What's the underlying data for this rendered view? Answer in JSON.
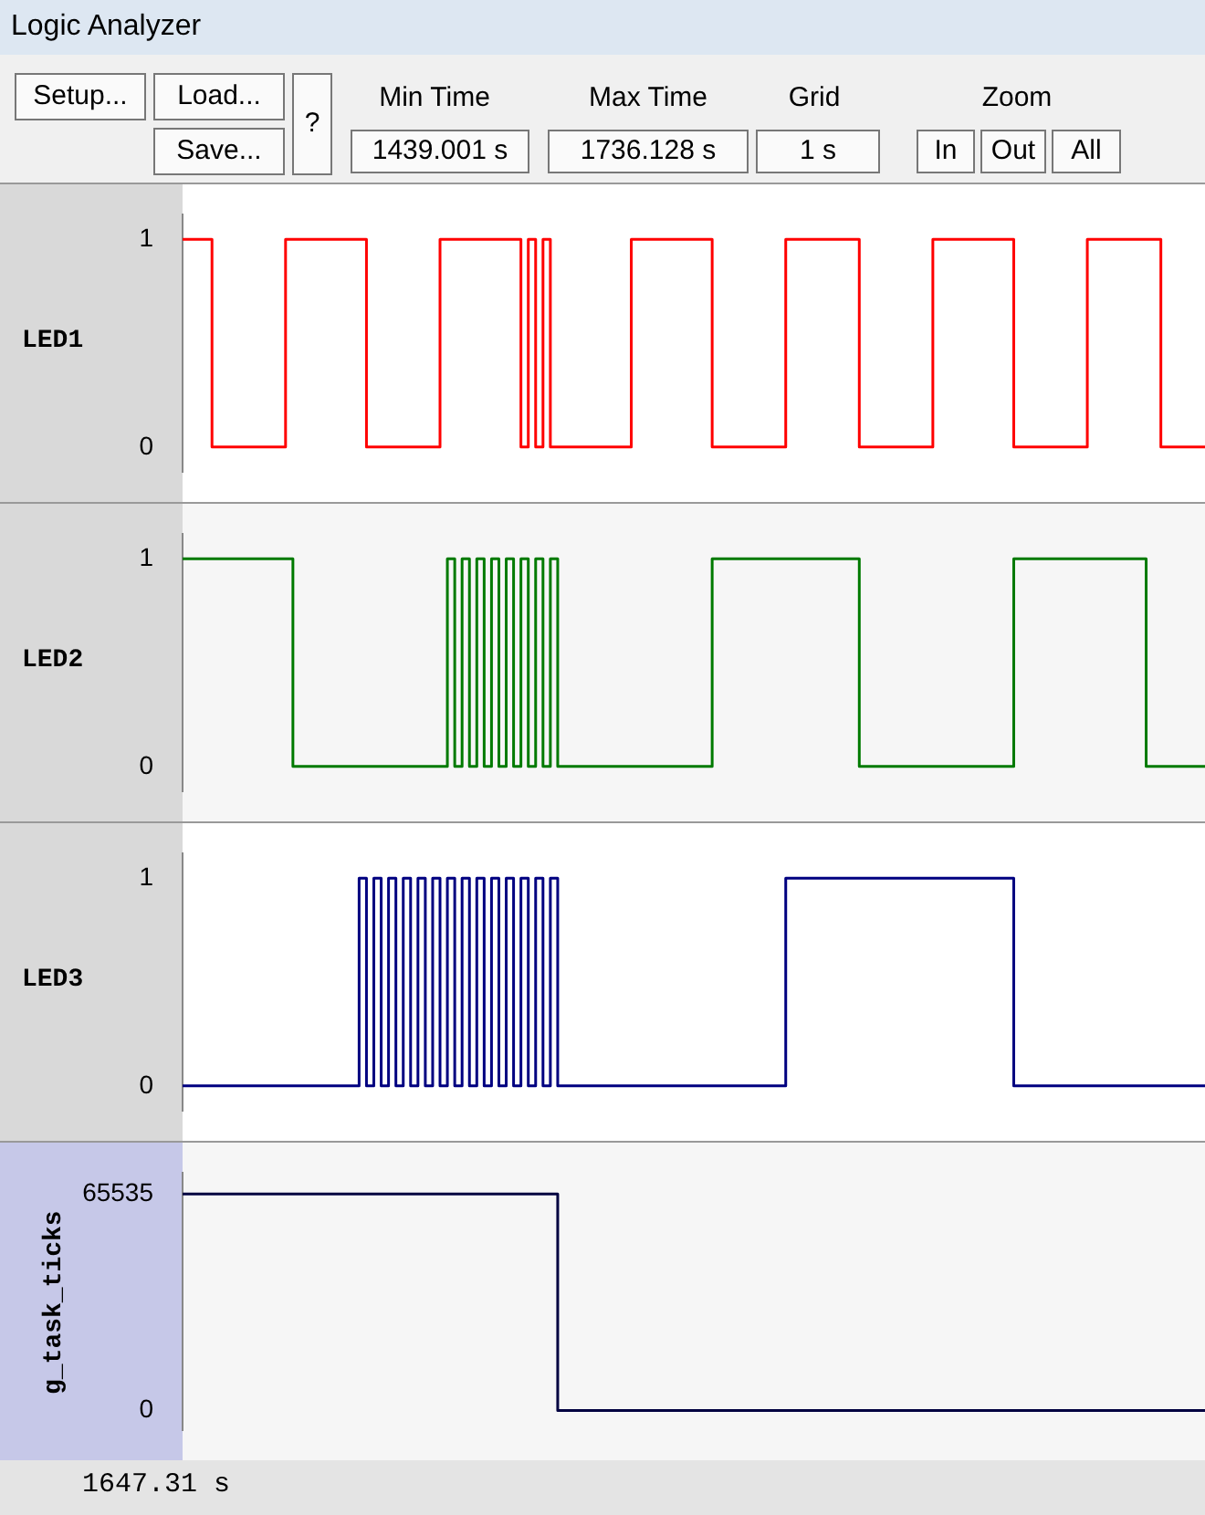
{
  "chart_data": [
    {
      "type": "step",
      "title": "Logic Analyzer",
      "ylabel": "LED1",
      "marker": "none",
      "ylim": [
        -0.12,
        1.12
      ],
      "yticks": [
        0,
        1
      ],
      "annotations": [
        "Setup...",
        "Load...",
        "Save...",
        "?",
        "Min Time",
        "1439.001 s",
        "Max Time",
        "1736.128 s",
        "Grid",
        "1 s",
        "Zoom",
        "In",
        "Out",
        "All"
      ],
      "categories": [
        null,
        null,
        null,
        null,
        null,
        null,
        null,
        null,
        null,
        null,
        null,
        null,
        null,
        null,
        null,
        null,
        null,
        null,
        null,
        null,
        null,
        null,
        null,
        null,
        null,
        null,
        null,
        null,
        null,
        null,
        null,
        null,
        null,
        null,
        null,
        null,
        null,
        null,
        null,
        null,
        null,
        null,
        null,
        null,
        null,
        null,
        null,
        null,
        null,
        null,
        null,
        null,
        null,
        null,
        null,
        null,
        null,
        null,
        null,
        null,
        null,
        null,
        null,
        null,
        null,
        null,
        null,
        null,
        null,
        null,
        null,
        null,
        null,
        null,
        null,
        null,
        null,
        null,
        null,
        null,
        null,
        null,
        null,
        null,
        null,
        null,
        null,
        null,
        null,
        null,
        null,
        null,
        null,
        null,
        null,
        null,
        null,
        null,
        null,
        null,
        null,
        null,
        null,
        null,
        null,
        null,
        null,
        null,
        null,
        null,
        null,
        null,
        null,
        null,
        null,
        null,
        null,
        null,
        null,
        null,
        null,
        null,
        null,
        null,
        null,
        null,
        null,
        null,
        null,
        null,
        null,
        null,
        null,
        null,
        null,
        null,
        null,
        null,
        null,
        null
      ],
      "series": [
        {
          "color": "#ff0000",
          "values": [
            1,
            1,
            1,
            1,
            1,
            0,
            0,
            0,
            0,
            0,
            0,
            0,
            0,
            0,
            0,
            1,
            1,
            1,
            1,
            1,
            1,
            1,
            1,
            1,
            1,
            1,
            0,
            0,
            0,
            0,
            0,
            0,
            0,
            0,
            0,
            0,
            1,
            1,
            1,
            1,
            1,
            1,
            1,
            1,
            1,
            1,
            1,
            0,
            1,
            0,
            1,
            0,
            0,
            0,
            0,
            0,
            0,
            0,
            0,
            0,
            0,
            0,
            1,
            1,
            1,
            1,
            1,
            1,
            1,
            1,
            1,
            1,
            1,
            0,
            0,
            0,
            0,
            0,
            0,
            0,
            0,
            0,
            0,
            1,
            1,
            1,
            1,
            1,
            1,
            1,
            1,
            1,
            1,
            0,
            0,
            0,
            0,
            0,
            0,
            0,
            0,
            0,
            0,
            1,
            1,
            1,
            1,
            1,
            1,
            1,
            1,
            1,
            1,
            1,
            0,
            0,
            0,
            0,
            0,
            0,
            0,
            0,
            0,
            0,
            1,
            1,
            1,
            1,
            1,
            1,
            1,
            1,
            1,
            1,
            0,
            0,
            0,
            0,
            0,
            0
          ]
        }
      ]
    },
    {
      "type": "step",
      "ylabel": "LED2",
      "marker": "none",
      "ylim": [
        -0.12,
        1.12
      ],
      "yticks": [
        0,
        1
      ],
      "categories": [
        null,
        null,
        null,
        null,
        null,
        null,
        null,
        null,
        null,
        null,
        null,
        null,
        null,
        null,
        null,
        null,
        null,
        null,
        null,
        null,
        null,
        null,
        null,
        null,
        null,
        null,
        null,
        null,
        null,
        null,
        null,
        null,
        null,
        null,
        null,
        null,
        null,
        null,
        null,
        null,
        null,
        null,
        null,
        null,
        null,
        null,
        null,
        null,
        null,
        null,
        null,
        null,
        null,
        null,
        null,
        null,
        null,
        null,
        null,
        null,
        null,
        null,
        null,
        null,
        null,
        null,
        null,
        null,
        null,
        null,
        null,
        null,
        null,
        null,
        null,
        null,
        null,
        null,
        null,
        null,
        null,
        null,
        null,
        null,
        null,
        null,
        null,
        null,
        null,
        null,
        null,
        null,
        null,
        null,
        null,
        null,
        null,
        null,
        null,
        null,
        null,
        null,
        null,
        null,
        null,
        null,
        null,
        null,
        null,
        null,
        null,
        null,
        null,
        null,
        null,
        null,
        null,
        null,
        null,
        null,
        null,
        null,
        null,
        null,
        null,
        null,
        null,
        null,
        null,
        null,
        null,
        null,
        null,
        null,
        null,
        null,
        null,
        null,
        null,
        null
      ],
      "series": [
        {
          "color": "#007a00",
          "values": [
            1,
            1,
            1,
            1,
            1,
            1,
            1,
            1,
            1,
            1,
            1,
            1,
            1,
            1,
            1,
            1,
            0,
            0,
            0,
            0,
            0,
            0,
            0,
            0,
            0,
            0,
            0,
            0,
            0,
            0,
            0,
            0,
            0,
            0,
            0,
            0,
            0,
            1,
            0,
            1,
            0,
            1,
            0,
            1,
            0,
            1,
            0,
            1,
            0,
            1,
            0,
            1,
            0,
            0,
            0,
            0,
            0,
            0,
            0,
            0,
            0,
            0,
            0,
            0,
            0,
            0,
            0,
            0,
            0,
            0,
            0,
            0,
            0,
            1,
            1,
            1,
            1,
            1,
            1,
            1,
            1,
            1,
            1,
            1,
            1,
            1,
            1,
            1,
            1,
            1,
            1,
            1,
            1,
            0,
            0,
            0,
            0,
            0,
            0,
            0,
            0,
            0,
            0,
            0,
            0,
            0,
            0,
            0,
            0,
            0,
            0,
            0,
            0,
            0,
            1,
            1,
            1,
            1,
            1,
            1,
            1,
            1,
            1,
            1,
            1,
            1,
            1,
            1,
            1,
            1,
            1,
            1,
            0,
            0,
            0,
            0,
            0,
            0,
            0,
            0
          ]
        }
      ]
    },
    {
      "type": "step",
      "ylabel": "LED3",
      "marker": "none",
      "ylim": [
        -0.12,
        1.12
      ],
      "yticks": [
        0,
        1
      ],
      "categories": [
        null,
        null,
        null,
        null,
        null,
        null,
        null,
        null,
        null,
        null,
        null,
        null,
        null,
        null,
        null,
        null,
        null,
        null,
        null,
        null,
        null,
        null,
        null,
        null,
        null,
        null,
        null,
        null,
        null,
        null,
        null,
        null,
        null,
        null,
        null,
        null,
        null,
        null,
        null,
        null,
        null,
        null,
        null,
        null,
        null,
        null,
        null,
        null,
        null,
        null,
        null,
        null,
        null,
        null,
        null,
        null,
        null,
        null,
        null,
        null,
        null,
        null,
        null,
        null,
        null,
        null,
        null,
        null,
        null,
        null,
        null,
        null,
        null,
        null,
        null,
        null,
        null,
        null,
        null,
        null,
        null,
        null,
        null,
        null,
        null,
        null,
        null,
        null,
        null,
        null,
        null,
        null,
        null,
        null,
        null,
        null,
        null,
        null,
        null,
        null,
        null,
        null,
        null,
        null,
        null,
        null,
        null,
        null,
        null,
        null,
        null,
        null,
        null,
        null,
        null,
        null,
        null,
        null,
        null,
        null,
        null,
        null,
        null,
        null,
        null,
        null,
        null,
        null,
        null,
        null,
        null,
        null,
        null,
        null,
        null,
        null,
        null,
        null,
        null,
        null
      ],
      "series": [
        {
          "color": "#000080",
          "values": [
            0,
            0,
            0,
            0,
            0,
            0,
            0,
            0,
            0,
            0,
            0,
            0,
            0,
            0,
            0,
            0,
            0,
            0,
            0,
            0,
            0,
            0,
            0,
            0,
            0,
            1,
            0,
            1,
            0,
            1,
            0,
            1,
            0,
            1,
            0,
            1,
            0,
            1,
            0,
            1,
            0,
            1,
            0,
            1,
            0,
            1,
            0,
            1,
            0,
            1,
            0,
            1,
            0,
            0,
            0,
            0,
            0,
            0,
            0,
            0,
            0,
            0,
            0,
            0,
            0,
            0,
            0,
            0,
            0,
            0,
            0,
            0,
            0,
            0,
            0,
            0,
            0,
            0,
            0,
            0,
            0,
            0,
            0,
            1,
            1,
            1,
            1,
            1,
            1,
            1,
            1,
            1,
            1,
            1,
            1,
            1,
            1,
            1,
            1,
            1,
            1,
            1,
            1,
            1,
            1,
            1,
            1,
            1,
            1,
            1,
            1,
            1,
            1,
            1,
            0,
            0,
            0,
            0,
            0,
            0,
            0,
            0,
            0,
            0,
            0,
            0,
            0,
            0,
            0,
            0,
            0,
            0,
            0,
            0,
            0,
            0,
            0,
            0,
            0,
            0
          ]
        }
      ]
    },
    {
      "type": "step",
      "ylabel": "g_task_ticks",
      "marker": "none",
      "ylim": [
        -6000,
        72000
      ],
      "yticks": [
        0,
        65535
      ],
      "annotations": [
        "1647.31 s"
      ],
      "categories": [
        null,
        null,
        null,
        null,
        null,
        null,
        null,
        null,
        null,
        null,
        null,
        null,
        null,
        null,
        null,
        null,
        null,
        null,
        null,
        null,
        null,
        null,
        null,
        null,
        null,
        null,
        null,
        null,
        null,
        null,
        null,
        null,
        null,
        null,
        null,
        null,
        null,
        null,
        null,
        null,
        null,
        null,
        null,
        null,
        null,
        null,
        null,
        null,
        null,
        null,
        null,
        null,
        null,
        null,
        null,
        null,
        null,
        null,
        null,
        null,
        null,
        null,
        null,
        null,
        null,
        null,
        null,
        null,
        null,
        null,
        null,
        null,
        null,
        null,
        null,
        null,
        null,
        null,
        null,
        null,
        null,
        null,
        null,
        null,
        null,
        null,
        null,
        null,
        null,
        null,
        null,
        null,
        null,
        null,
        null,
        null,
        null,
        null,
        null,
        null,
        null,
        null,
        null,
        null,
        null,
        null,
        null,
        null,
        null,
        null,
        null,
        null,
        null,
        null,
        null,
        null,
        null,
        null,
        null,
        null,
        null,
        null,
        null,
        null,
        null,
        null,
        null,
        null,
        null,
        null,
        null,
        null,
        null,
        null,
        null,
        null,
        null,
        null,
        null,
        null
      ],
      "series": [
        {
          "color": "#000040",
          "values": [
            65535,
            65535,
            65535,
            65535,
            65535,
            65535,
            65535,
            65535,
            65535,
            65535,
            65535,
            65535,
            65535,
            65535,
            65535,
            65535,
            65535,
            65535,
            65535,
            65535,
            65535,
            65535,
            65535,
            65535,
            65535,
            65535,
            65535,
            65535,
            65535,
            65535,
            65535,
            65535,
            65535,
            65535,
            65535,
            65535,
            65535,
            65535,
            65535,
            65535,
            65535,
            65535,
            65535,
            65535,
            65535,
            65535,
            65535,
            65535,
            65535,
            65535,
            65535,
            65535,
            0,
            0,
            0,
            0,
            0,
            0,
            0,
            0,
            0,
            0,
            0,
            0,
            0,
            0,
            0,
            0,
            0,
            0,
            0,
            0,
            0,
            0,
            0,
            0,
            0,
            0,
            0,
            0,
            0,
            0,
            0,
            0,
            0,
            0,
            0,
            0,
            0,
            0,
            0,
            0,
            0,
            0,
            0,
            0,
            0,
            0,
            0,
            0,
            0,
            0,
            0,
            0,
            0,
            0,
            0,
            0,
            0,
            0,
            0,
            0,
            0,
            0,
            0,
            0,
            0,
            0,
            0,
            0,
            0,
            0,
            0,
            0,
            0,
            0,
            0,
            0,
            0,
            0,
            0,
            0,
            0,
            0,
            0,
            0,
            0,
            0,
            0,
            0
          ]
        }
      ]
    }
  ]
}
